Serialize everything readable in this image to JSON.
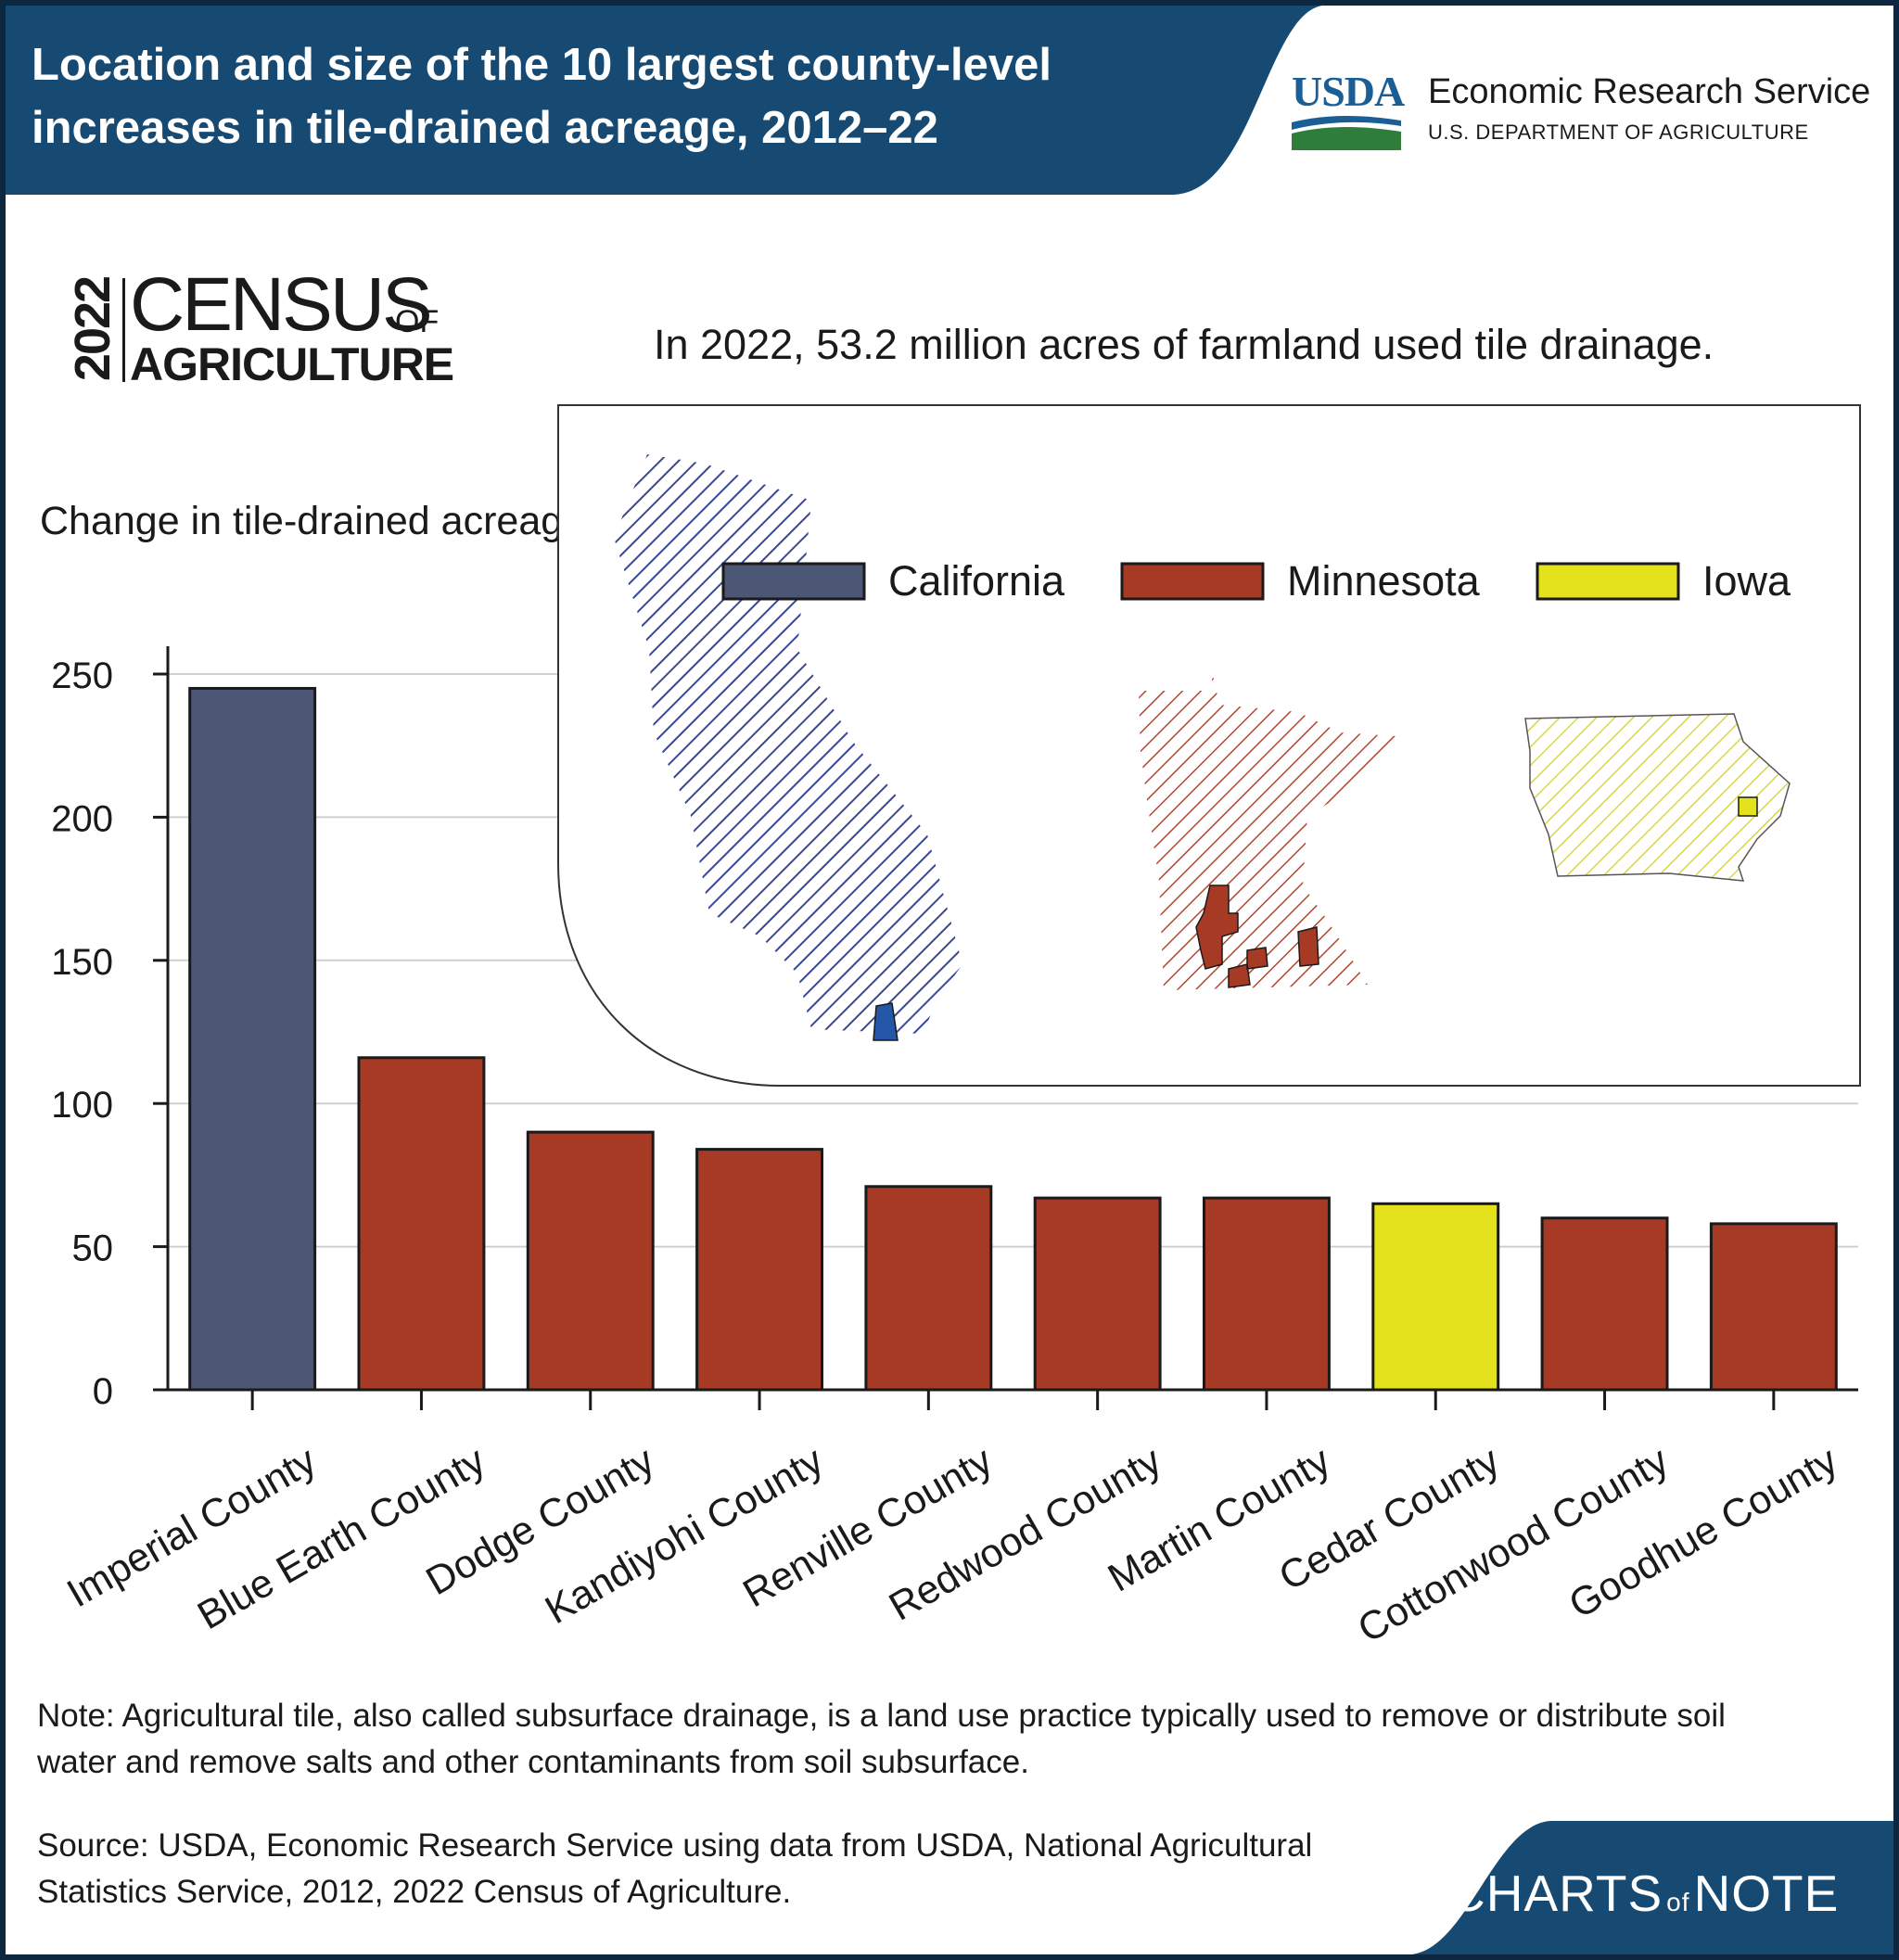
{
  "header": {
    "title": "Location and size of the 10 largest county-level increases in tile-drained acreage, 2012–22",
    "logo_word": "USDA",
    "agency_name": "Economic Research Service",
    "department": "U.S. DEPARTMENT OF AGRICULTURE"
  },
  "census_logo": {
    "year": "2022",
    "word_main": "CENSUS",
    "word_of": "OF",
    "word_ag": "AGRICULTURE"
  },
  "colors": {
    "header_bg": "#174a73",
    "california": "#4b5775",
    "minnesota": "#a63a24",
    "iowa": "#e4e21d",
    "footer_bg": "#174a73"
  },
  "chart_data": {
    "type": "bar",
    "subtitle": "In 2022, 53.2 million acres of farmland used tile drainage.",
    "ylabel": "Change in tile-drained acreage (thousands)",
    "ylim": [
      0,
      250
    ],
    "yticks": [
      "0",
      "50",
      "100",
      "150",
      "200",
      "250"
    ],
    "grid": true,
    "categories": [
      "Imperial County",
      "Blue Earth County",
      "Dodge County",
      "Kandiyohi County",
      "Renville County",
      "Redwood County",
      "Martin County",
      "Cedar County",
      "Cottonwood County",
      "Goodhue County"
    ],
    "values": [
      245,
      116,
      90,
      84,
      71,
      67,
      67,
      65,
      60,
      58
    ],
    "states": [
      "California",
      "Minnesota",
      "Minnesota",
      "Minnesota",
      "Minnesota",
      "Minnesota",
      "Minnesota",
      "Iowa",
      "Minnesota",
      "Minnesota"
    ],
    "legend": {
      "placement": "top-right",
      "entries": [
        {
          "label": "California",
          "color": "#4b5775"
        },
        {
          "label": "Minnesota",
          "color": "#a63a24"
        },
        {
          "label": "Iowa",
          "color": "#e4e21d"
        }
      ]
    }
  },
  "footer": {
    "note": "Note: Agricultural tile, also called subsurface drainage, is a land use practice typically used to remove or distribute soil water and remove salts and other contaminants from soil subsurface.",
    "source": "Source: USDA, Economic Research Service using data from USDA, National Agricultural Statistics Service, 2012, 2022 Census of Agriculture.",
    "brand_left": "CHARTS",
    "brand_of": "of",
    "brand_right": "NOTE"
  }
}
